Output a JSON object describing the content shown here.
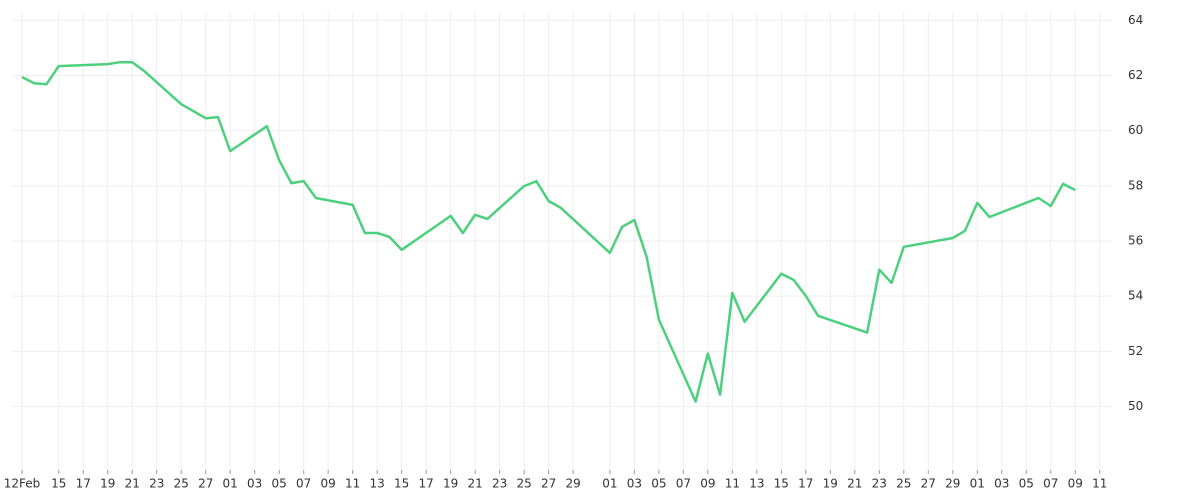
{
  "chart_data": {
    "type": "line",
    "color": "#4cd07d",
    "grid": true,
    "x": [
      "02-12",
      "02-13",
      "02-14",
      "02-15",
      "02-19",
      "02-20",
      "02-21",
      "02-22",
      "02-25",
      "02-27",
      "02-28",
      "03-01",
      "03-04",
      "03-05",
      "03-06",
      "03-07",
      "03-08",
      "03-11",
      "03-12",
      "03-13",
      "03-14",
      "03-15",
      "03-19",
      "03-20",
      "03-21",
      "03-22",
      "03-25",
      "03-26",
      "03-27",
      "03-28",
      "04-01",
      "04-02",
      "04-03",
      "04-04",
      "04-05",
      "04-08",
      "04-09",
      "04-10",
      "04-11",
      "04-12",
      "04-15",
      "04-16",
      "04-17",
      "04-18",
      "04-22",
      "04-23",
      "04-24",
      "04-25",
      "04-29",
      "04-30",
      "05-01",
      "05-02",
      "05-06",
      "05-07",
      "05-08",
      "05-09"
    ],
    "values": [
      61.94,
      61.72,
      61.68,
      62.34,
      62.41,
      62.48,
      62.48,
      62.15,
      60.96,
      60.45,
      60.49,
      59.26,
      60.16,
      58.93,
      58.1,
      58.17,
      57.56,
      57.31,
      56.29,
      56.29,
      56.15,
      55.68,
      56.91,
      56.29,
      56.95,
      56.8,
      57.99,
      58.17,
      57.45,
      57.2,
      55.57,
      56.51,
      56.76,
      55.43,
      53.15,
      50.18,
      51.92,
      50.43,
      54.12,
      53.07,
      54.81,
      54.59,
      54.01,
      53.29,
      52.68,
      54.96,
      54.48,
      55.79,
      56.11,
      56.37,
      57.38,
      56.87,
      57.56,
      57.27,
      58.07,
      57.85
    ],
    "xlim": [
      "02-12",
      "05-12"
    ],
    "xticks": [
      {
        "value": "02-12",
        "label": "12Feb"
      },
      {
        "value": "02-15",
        "label": "15"
      },
      {
        "value": "02-17",
        "label": "17"
      },
      {
        "value": "02-19",
        "label": "19"
      },
      {
        "value": "02-21",
        "label": "21"
      },
      {
        "value": "02-23",
        "label": "23"
      },
      {
        "value": "02-25",
        "label": "25"
      },
      {
        "value": "02-27",
        "label": "27"
      },
      {
        "value": "03-01",
        "label": "01"
      },
      {
        "value": "03-03",
        "label": "03"
      },
      {
        "value": "03-05",
        "label": "05"
      },
      {
        "value": "03-07",
        "label": "07"
      },
      {
        "value": "03-09",
        "label": "09"
      },
      {
        "value": "03-11",
        "label": "11"
      },
      {
        "value": "03-13",
        "label": "13"
      },
      {
        "value": "03-15",
        "label": "15"
      },
      {
        "value": "03-17",
        "label": "17"
      },
      {
        "value": "03-19",
        "label": "19"
      },
      {
        "value": "03-21",
        "label": "21"
      },
      {
        "value": "03-23",
        "label": "23"
      },
      {
        "value": "03-25",
        "label": "25"
      },
      {
        "value": "03-27",
        "label": "27"
      },
      {
        "value": "03-29",
        "label": "29"
      },
      {
        "value": "04-01",
        "label": "01"
      },
      {
        "value": "04-03",
        "label": "03"
      },
      {
        "value": "04-05",
        "label": "05"
      },
      {
        "value": "04-07",
        "label": "07"
      },
      {
        "value": "04-09",
        "label": "09"
      },
      {
        "value": "04-11",
        "label": "11"
      },
      {
        "value": "04-13",
        "label": "13"
      },
      {
        "value": "04-15",
        "label": "15"
      },
      {
        "value": "04-17",
        "label": "17"
      },
      {
        "value": "04-19",
        "label": "19"
      },
      {
        "value": "04-21",
        "label": "21"
      },
      {
        "value": "04-23",
        "label": "23"
      },
      {
        "value": "04-25",
        "label": "25"
      },
      {
        "value": "04-27",
        "label": "27"
      },
      {
        "value": "04-29",
        "label": "29"
      },
      {
        "value": "05-01",
        "label": "01"
      },
      {
        "value": "05-03",
        "label": "03"
      },
      {
        "value": "05-05",
        "label": "05"
      },
      {
        "value": "05-07",
        "label": "07"
      },
      {
        "value": "05-09",
        "label": "09"
      },
      {
        "value": "05-11",
        "label": "11"
      }
    ],
    "ylim": [
      47.7,
      64.3
    ],
    "yticks": [
      50,
      52,
      54,
      56,
      58,
      60,
      62,
      64
    ]
  }
}
